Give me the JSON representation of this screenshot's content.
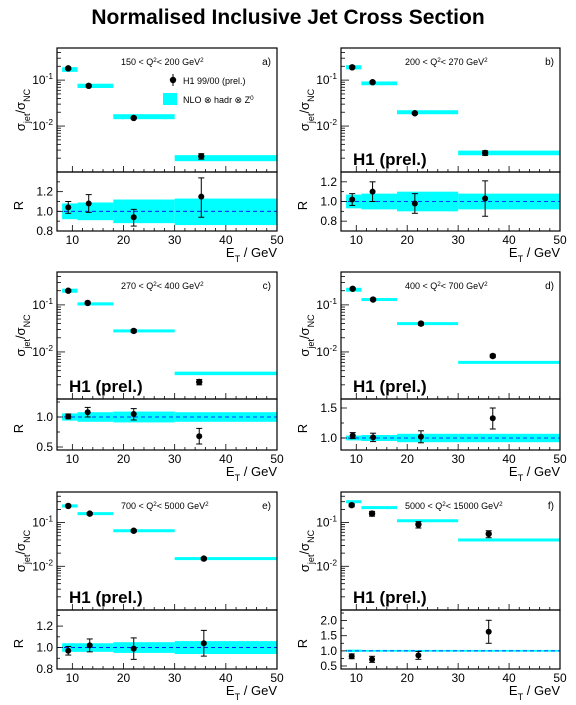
{
  "title": "Normalised Inclusive Jet Cross Section",
  "colors": {
    "band": "#00ffff",
    "point": "#000000",
    "ref": "#0000ff"
  },
  "common": {
    "xlabel": "E_T / GeV",
    "ylabel_top": "σ_jet / σ_NC",
    "ylabel_bottom": "R",
    "xlim": [
      7,
      50
    ],
    "x_ticks": [
      10,
      20,
      30,
      40,
      50
    ],
    "top_yscale": "log",
    "top_ylim": [
      0.001,
      0.5
    ],
    "top_y_ticks": [
      0.01,
      0.1
    ],
    "top_y_tick_labels": [
      "10-2",
      "10-1"
    ],
    "bins": [
      [
        8,
        11
      ],
      [
        11,
        18
      ],
      [
        18,
        30
      ],
      [
        30,
        50
      ]
    ],
    "legend": {
      "data": "H1 99/00 (prel.)",
      "nlo": "NLO ⊗ hadr ⊗ Z0"
    },
    "h1_label": "H1 (prel.)",
    "grid": false
  },
  "chart_data": [
    {
      "type": "scatter",
      "letter": "a)",
      "q2_lo": "150",
      "q2_hi": "200",
      "show_legend": true,
      "show_h1": false,
      "x": [
        9.2,
        13.2,
        22.0,
        35.2
      ],
      "sigma": [
        0.18,
        0.075,
        0.015,
        0.0022
      ],
      "sigma_err": [
        [
          0.17,
          0.19
        ],
        [
          0.071,
          0.079
        ],
        [
          0.0143,
          0.0158
        ],
        [
          0.0019,
          0.0025
        ]
      ],
      "nlo": [
        0.17,
        0.075,
        0.016,
        0.002
      ],
      "nlo_width": [
        0.02,
        0.008,
        0.002,
        0.0003
      ],
      "r_ylim": [
        0.8,
        1.4
      ],
      "r_ticks": [
        0.8,
        1.0,
        1.2
      ],
      "r_tick_labels": [
        "0.8",
        "1.0",
        "1.2"
      ],
      "r": [
        1.04,
        1.08,
        0.94,
        1.15
      ],
      "r_err": [
        [
          0.98,
          1.1
        ],
        [
          0.99,
          1.17
        ],
        [
          0.85,
          1.02
        ],
        [
          0.94,
          1.34
        ]
      ],
      "band": [
        [
          0.92,
          1.08
        ],
        [
          0.91,
          1.09
        ],
        [
          0.88,
          1.12
        ],
        [
          0.86,
          1.13
        ]
      ]
    },
    {
      "type": "scatter",
      "letter": "b)",
      "q2_lo": "200",
      "q2_hi": "270",
      "show_legend": false,
      "show_h1": true,
      "x": [
        9.2,
        13.2,
        21.5,
        35.3
      ],
      "sigma": [
        0.19,
        0.09,
        0.019,
        0.0026
      ],
      "sigma_err": [
        [
          0.18,
          0.2
        ],
        [
          0.085,
          0.095
        ],
        [
          0.018,
          0.02
        ],
        [
          0.0023,
          0.0029
        ]
      ],
      "nlo": [
        0.19,
        0.085,
        0.02,
        0.0026
      ],
      "nlo_width": [
        0.02,
        0.008,
        0.002,
        0.0003
      ],
      "r_ylim": [
        0.7,
        1.3
      ],
      "r_ticks": [
        0.8,
        1.0,
        1.2
      ],
      "r_tick_labels": [
        "0.8",
        "1.0",
        "1.2"
      ],
      "r": [
        1.02,
        1.1,
        0.98,
        1.03
      ],
      "r_err": [
        [
          0.96,
          1.08
        ],
        [
          1.0,
          1.2
        ],
        [
          0.88,
          1.08
        ],
        [
          0.85,
          1.21
        ]
      ],
      "band": [
        [
          0.93,
          1.07
        ],
        [
          0.92,
          1.08
        ],
        [
          0.9,
          1.1
        ],
        [
          0.92,
          1.08
        ]
      ]
    },
    {
      "type": "scatter",
      "letter": "c)",
      "q2_lo": "270",
      "q2_hi": "400",
      "show_legend": false,
      "show_h1": true,
      "x": [
        9.2,
        13.0,
        22.0,
        34.8
      ],
      "sigma": [
        0.2,
        0.11,
        0.028,
        0.0023
      ],
      "sigma_err": [
        [
          0.19,
          0.21
        ],
        [
          0.105,
          0.116
        ],
        [
          0.026,
          0.03
        ],
        [
          0.002,
          0.0026
        ]
      ],
      "nlo": [
        0.2,
        0.105,
        0.028,
        0.0035
      ],
      "nlo_width": [
        0.02,
        0.008,
        0.002,
        0.0003
      ],
      "r_ylim": [
        0.45,
        1.3
      ],
      "r_ticks": [
        0.5,
        1.0
      ],
      "r_tick_labels": [
        "0.5",
        "1.0"
      ],
      "r": [
        1.01,
        1.08,
        1.05,
        0.68
      ],
      "r_err": [
        [
          0.97,
          1.05
        ],
        [
          1.0,
          1.16
        ],
        [
          0.95,
          1.14
        ],
        [
          0.55,
          0.81
        ]
      ],
      "band": [
        [
          0.94,
          1.06
        ],
        [
          0.92,
          1.08
        ],
        [
          0.91,
          1.09
        ],
        [
          0.92,
          1.08
        ]
      ]
    },
    {
      "type": "scatter",
      "letter": "d)",
      "q2_lo": "400",
      "q2_hi": "700",
      "show_legend": false,
      "show_h1": true,
      "x": [
        9.3,
        13.3,
        22.7,
        36.8
      ],
      "sigma": [
        0.22,
        0.13,
        0.04,
        0.0082
      ],
      "sigma_err": [
        [
          0.21,
          0.23
        ],
        [
          0.123,
          0.137
        ],
        [
          0.037,
          0.043
        ],
        [
          0.0076,
          0.0089
        ]
      ],
      "nlo": [
        0.21,
        0.13,
        0.04,
        0.006
      ],
      "nlo_width": [
        0.02,
        0.008,
        0.002,
        0.0003
      ],
      "r_ylim": [
        0.8,
        1.65
      ],
      "r_ticks": [
        1.0,
        1.5
      ],
      "r_tick_labels": [
        "1.0",
        "1.5"
      ],
      "r": [
        1.04,
        1.01,
        1.02,
        1.33
      ],
      "r_err": [
        [
          0.99,
          1.09
        ],
        [
          0.94,
          1.08
        ],
        [
          0.92,
          1.12
        ],
        [
          1.15,
          1.5
        ]
      ],
      "band": [
        [
          0.96,
          1.04
        ],
        [
          0.95,
          1.05
        ],
        [
          0.93,
          1.07
        ],
        [
          0.93,
          1.07
        ]
      ]
    },
    {
      "type": "scatter",
      "letter": "e)",
      "q2_lo": "700",
      "q2_hi": "5000",
      "show_legend": false,
      "show_h1": true,
      "x": [
        9.2,
        13.4,
        22.0,
        35.7
      ],
      "sigma": [
        0.24,
        0.16,
        0.065,
        0.015
      ],
      "sigma_err": [
        [
          0.23,
          0.25
        ],
        [
          0.15,
          0.17
        ],
        [
          0.061,
          0.069
        ],
        [
          0.014,
          0.016
        ]
      ],
      "nlo": [
        0.24,
        0.16,
        0.065,
        0.015
      ],
      "nlo_width": [
        0.02,
        0.008,
        0.002,
        0.0003
      ],
      "r_ylim": [
        0.8,
        1.35
      ],
      "r_ticks": [
        0.8,
        1.0,
        1.2
      ],
      "r_tick_labels": [
        "0.8",
        "1.0",
        "1.2"
      ],
      "r": [
        0.97,
        1.02,
        0.99,
        1.04
      ],
      "r_err": [
        [
          0.93,
          1.01
        ],
        [
          0.96,
          1.08
        ],
        [
          0.89,
          1.09
        ],
        [
          0.92,
          1.16
        ]
      ],
      "band": [
        [
          0.96,
          1.04
        ],
        [
          0.96,
          1.04
        ],
        [
          0.95,
          1.05
        ],
        [
          0.94,
          1.06
        ]
      ]
    },
    {
      "type": "scatter",
      "letter": "f)",
      "q2_lo": "5000",
      "q2_hi": "15000",
      "show_legend": false,
      "show_h1": true,
      "x": [
        9.1,
        13.1,
        22.2,
        36.0
      ],
      "sigma": [
        0.25,
        0.16,
        0.09,
        0.055
      ],
      "sigma_err": [
        [
          0.23,
          0.27
        ],
        [
          0.14,
          0.18
        ],
        [
          0.075,
          0.105
        ],
        [
          0.045,
          0.065
        ]
      ],
      "nlo": [
        0.3,
        0.22,
        0.11,
        0.04
      ],
      "nlo_width": [
        0.02,
        0.008,
        0.002,
        0.0003
      ],
      "r_ylim": [
        0.4,
        2.35
      ],
      "r_ticks": [
        0.5,
        1.0,
        1.5,
        2.0
      ],
      "r_tick_labels": [
        "0.5",
        "1.0",
        "1.5",
        "2.0"
      ],
      "r": [
        0.82,
        0.72,
        0.85,
        1.63
      ],
      "r_err": [
        [
          0.74,
          0.9
        ],
        [
          0.62,
          0.82
        ],
        [
          0.72,
          0.98
        ],
        [
          1.25,
          2.01
        ]
      ],
      "band": [
        [
          0.96,
          1.04
        ],
        [
          0.97,
          1.03
        ],
        [
          0.97,
          1.03
        ],
        [
          0.97,
          1.03
        ]
      ]
    }
  ]
}
